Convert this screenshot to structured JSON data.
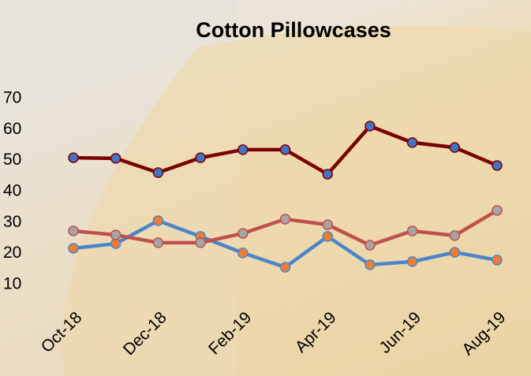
{
  "chart_data": {
    "type": "line",
    "title": "Cotton Pillowcases",
    "categories": [
      "Oct-18",
      null,
      "Dec-18",
      null,
      "Feb-19",
      null,
      "Apr-19",
      null,
      "Jun-19",
      null,
      "Aug-19"
    ],
    "series": [
      {
        "color": "#7b0000",
        "marker_color": "#4472c4",
        "values": [
          50.9,
          50.7,
          46.1,
          50.9,
          53.5,
          53.5,
          45.6,
          61.1,
          55.8,
          54.2,
          48.4
        ]
      },
      {
        "color": "#4a86c8",
        "marker_color": "#ed7d31",
        "values": [
          21.7,
          23.2,
          30.6,
          25.5,
          20.2,
          15.6,
          25.5,
          16.4,
          17.4,
          20.4,
          17.9
        ]
      },
      {
        "color": "#c0504d",
        "marker_color": "#a5a5a5",
        "values": [
          27.3,
          26.0,
          23.5,
          23.5,
          26.5,
          31.1,
          29.3,
          22.7,
          27.3,
          25.8,
          33.9
        ]
      }
    ],
    "ylim": [
      10,
      70
    ],
    "yticks": [
      10,
      20,
      30,
      40,
      50,
      60,
      70
    ],
    "grid": false
  }
}
